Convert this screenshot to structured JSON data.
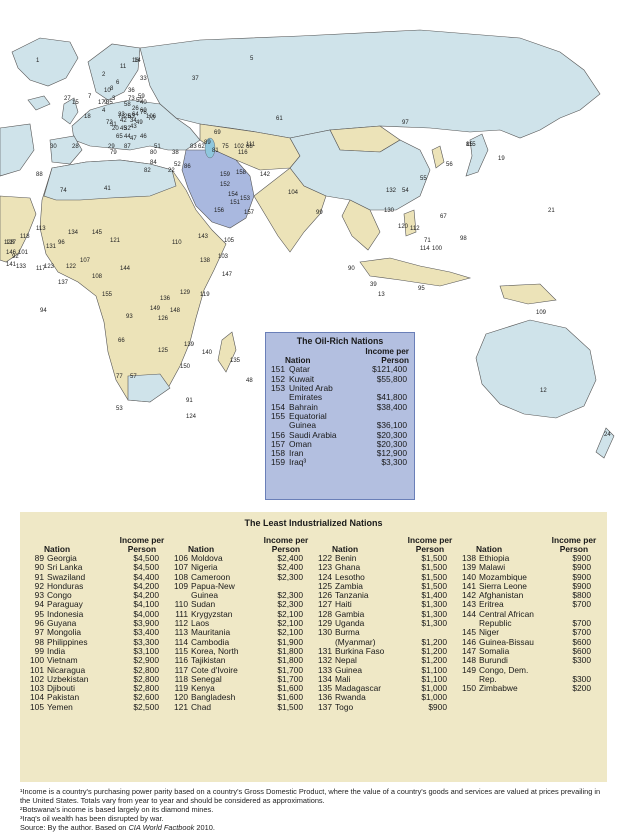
{
  "map_labels": [
    "1",
    "2",
    "3",
    "4",
    "5",
    "6",
    "7",
    "8",
    "9",
    "10",
    "11",
    "12",
    "13",
    "14",
    "15",
    "16",
    "17",
    "18",
    "19",
    "20",
    "21",
    "22",
    "23",
    "24",
    "25",
    "26",
    "27",
    "28",
    "29",
    "30",
    "31",
    "32",
    "33",
    "34",
    "35",
    "36",
    "37",
    "38",
    "39",
    "40",
    "41",
    "42",
    "43",
    "44",
    "45",
    "46",
    "47",
    "48",
    "49",
    "50",
    "51",
    "52",
    "53",
    "54",
    "55",
    "56",
    "57",
    "58",
    "59",
    "60",
    "61",
    "62",
    "63",
    "64",
    "65",
    "66",
    "67",
    "68",
    "69",
    "70",
    "71",
    "72",
    "73",
    "74",
    "75",
    "76",
    "77",
    "78",
    "79",
    "80",
    "81",
    "82",
    "83",
    "84",
    "85",
    "86",
    "87",
    "88",
    "89",
    "90",
    "91",
    "92",
    "93",
    "94",
    "95",
    "96",
    "97",
    "98",
    "99",
    "100",
    "101",
    "102",
    "103",
    "104",
    "105",
    "106",
    "107",
    "108",
    "109",
    "110",
    "111",
    "112",
    "113",
    "114",
    "115",
    "116",
    "117",
    "118",
    "119",
    "120",
    "121",
    "122",
    "123",
    "124",
    "125",
    "126",
    "127",
    "128",
    "129",
    "130",
    "131",
    "132",
    "133",
    "134",
    "135",
    "136",
    "137",
    "138",
    "139",
    "140",
    "141",
    "142",
    "143",
    "144",
    "145",
    "146",
    "147",
    "148",
    "149",
    "150",
    "151",
    "152",
    "153",
    "154",
    "155",
    "156",
    "157",
    "158",
    "159"
  ],
  "oil": {
    "title": "The Oil-Rich Nations",
    "col_nation": "Nation",
    "col_income": "Income per\nPerson",
    "rows": [
      {
        "num": "151",
        "name": "Qatar",
        "income": "$121,400"
      },
      {
        "num": "152",
        "name": "Kuwait",
        "income": "$55,800"
      },
      {
        "num": "153",
        "name": "United Arab\nEmirates",
        "income": "\n$41,800"
      },
      {
        "num": "154",
        "name": "Bahrain",
        "income": "$38,400"
      },
      {
        "num": "155",
        "name": "Equatorial\nGuinea",
        "income": "\n$36,100"
      },
      {
        "num": "156",
        "name": "Saudi Arabia",
        "income": "$20,300"
      },
      {
        "num": "157",
        "name": "Oman",
        "income": "$20,300"
      },
      {
        "num": "158",
        "name": "Iran",
        "income": "$12,900"
      },
      {
        "num": "159",
        "name": "Iraq³",
        "income": "$3,300"
      }
    ]
  },
  "least": {
    "title": "The Least Industrialized Nations",
    "col_nation": "Nation",
    "col_income": "Income per\nPerson",
    "columns": [
      [
        {
          "num": "89",
          "name": "Georgia",
          "income": "$4,500"
        },
        {
          "num": "90",
          "name": "Sri Lanka",
          "income": "$4,500"
        },
        {
          "num": "91",
          "name": "Swaziland",
          "income": "$4,400"
        },
        {
          "num": "92",
          "name": "Honduras",
          "income": "$4,200"
        },
        {
          "num": "93",
          "name": "Congo",
          "income": "$4,200"
        },
        {
          "num": "94",
          "name": "Paraguay",
          "income": "$4,100"
        },
        {
          "num": "95",
          "name": "Indonesia",
          "income": "$4,000"
        },
        {
          "num": "96",
          "name": "Guyana",
          "income": "$3,900"
        },
        {
          "num": "97",
          "name": "Mongolia",
          "income": "$3,400"
        },
        {
          "num": "98",
          "name": "Philippines",
          "income": "$3,300"
        },
        {
          "num": "99",
          "name": "India",
          "income": "$3,100"
        },
        {
          "num": "100",
          "name": "Vietnam",
          "income": "$2,900"
        },
        {
          "num": "101",
          "name": "Nicaragua",
          "income": "$2,800"
        },
        {
          "num": "102",
          "name": "Uzbekistan",
          "income": "$2,800"
        },
        {
          "num": "103",
          "name": "Djibouti",
          "income": "$2,800"
        },
        {
          "num": "104",
          "name": "Pakistan",
          "income": "$2,600"
        },
        {
          "num": "105",
          "name": "Yemen",
          "income": "$2,500"
        }
      ],
      [
        {
          "num": "106",
          "name": "Moldova",
          "income": "$2,400"
        },
        {
          "num": "107",
          "name": "Nigeria",
          "income": "$2,400"
        },
        {
          "num": "108",
          "name": "Cameroon",
          "income": "$2,300"
        },
        {
          "num": "109",
          "name": "Papua-New\nGuinea",
          "income": "\n$2,300"
        },
        {
          "num": "110",
          "name": "Sudan",
          "income": "$2,300"
        },
        {
          "num": "111",
          "name": "Krygyzstan",
          "income": "$2,100"
        },
        {
          "num": "112",
          "name": "Laos",
          "income": "$2,100"
        },
        {
          "num": "113",
          "name": "Mauritania",
          "income": "$2,100"
        },
        {
          "num": "114",
          "name": "Cambodia",
          "income": "$1,900"
        },
        {
          "num": "115",
          "name": "Korea, North",
          "income": "$1,800"
        },
        {
          "num": "116",
          "name": "Tajikistan",
          "income": "$1,800"
        },
        {
          "num": "117",
          "name": "Cote d'Ivoire",
          "income": "$1,700"
        },
        {
          "num": "118",
          "name": "Senegal",
          "income": "$1,700"
        },
        {
          "num": "119",
          "name": "Kenya",
          "income": "$1,600"
        },
        {
          "num": "120",
          "name": "Bangladesh",
          "income": "$1,600"
        },
        {
          "num": "121",
          "name": "Chad",
          "income": "$1,500"
        }
      ],
      [
        {
          "num": "122",
          "name": "Benin",
          "income": "$1,500"
        },
        {
          "num": "123",
          "name": "Ghana",
          "income": "$1,500"
        },
        {
          "num": "124",
          "name": "Lesotho",
          "income": "$1,500"
        },
        {
          "num": "125",
          "name": "Zambia",
          "income": "$1,500"
        },
        {
          "num": "126",
          "name": "Tanzania",
          "income": "$1,400"
        },
        {
          "num": "127",
          "name": "Haiti",
          "income": "$1,300"
        },
        {
          "num": "128",
          "name": "Gambia",
          "income": "$1,300"
        },
        {
          "num": "129",
          "name": "Uganda",
          "income": "$1,300"
        },
        {
          "num": "130",
          "name": "Burma\n(Myanmar)",
          "income": "\n$1,200"
        },
        {
          "num": "131",
          "name": "Burkina Faso",
          "income": "$1,200"
        },
        {
          "num": "132",
          "name": "Nepal",
          "income": "$1,200"
        },
        {
          "num": "133",
          "name": "Guinea",
          "income": "$1,100"
        },
        {
          "num": "134",
          "name": "Mali",
          "income": "$1,100"
        },
        {
          "num": "135",
          "name": "Madagascar",
          "income": "$1,000"
        },
        {
          "num": "136",
          "name": "Rwanda",
          "income": "$1,000"
        },
        {
          "num": "137",
          "name": "Togo",
          "income": "$900"
        }
      ],
      [
        {
          "num": "138",
          "name": "Ethiopia",
          "income": "$900"
        },
        {
          "num": "139",
          "name": "Malawi",
          "income": "$900"
        },
        {
          "num": "140",
          "name": "Mozambique",
          "income": "$900"
        },
        {
          "num": "141",
          "name": "Sierra Leone",
          "income": "$900"
        },
        {
          "num": "142",
          "name": "Afghanistan",
          "income": "$800"
        },
        {
          "num": "143",
          "name": "Eritrea",
          "income": "$700"
        },
        {
          "num": "144",
          "name": "Central African\nRepublic",
          "income": "\n$700"
        },
        {
          "num": "145",
          "name": "Niger",
          "income": "$700"
        },
        {
          "num": "146",
          "name": "Guinea-Bissau",
          "income": "$600"
        },
        {
          "num": "147",
          "name": "Somalia",
          "income": "$600"
        },
        {
          "num": "148",
          "name": "Burundi",
          "income": "$300"
        },
        {
          "num": "149",
          "name": "Congo, Dem.\nRep.",
          "income": "\n$300"
        },
        {
          "num": "150",
          "name": "Zimbabwe",
          "income": "$200"
        }
      ]
    ]
  },
  "notes": {
    "n1": "¹Income is a country's purchasing power parity based on a country's Gross Domestic Product, where the value of a country's goods and services are valued at prices prevailing in the United States. Totals vary from year to year and should be considered as approximations.",
    "n2": "²Botswana's income is based largely on its diamond mines.",
    "n3": "³Iraq's oil wealth has been disrupted by war.",
    "source_prefix": "Source: By the author. Based on ",
    "source_title": "CIA World Factbook",
    "source_suffix": " 2010."
  },
  "colors": {
    "ocean": "#ffffff",
    "land_rich": "#cfe3ea",
    "land_least": "#ece3b8",
    "land_oil": "#a9b8df",
    "border": "#555555",
    "lake": "#8fc7dd"
  }
}
